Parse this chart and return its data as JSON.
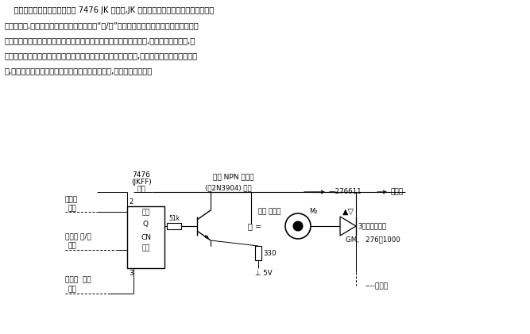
{
  "bg_color": "#ffffff",
  "fig_width": 6.67,
  "fig_height": 4.21,
  "dpi": 100,
  "para_lines": [
    "    微处理器的译码器输出馈送给 7476 JK 触发器,JK 触发器又通过光电耦合器去触发三端",
    "双向可控硅,从而对灯泡或其他交流负载进行“通/断”控制。发光二极管和硫化镉光电管所组",
    "成的光电耦合器在遮光罩里。当发光二极管发出的光照射到光电管时,光电管的电阻下降,于",
    "是便有一个大小与方向均适宜的控制电压去触发可控硅的控制极,使可控硅导通。当光线消失",
    "时,一旦在一个交流周期里可控硅上的电压接近于零,可控硅就被切断。"
  ]
}
